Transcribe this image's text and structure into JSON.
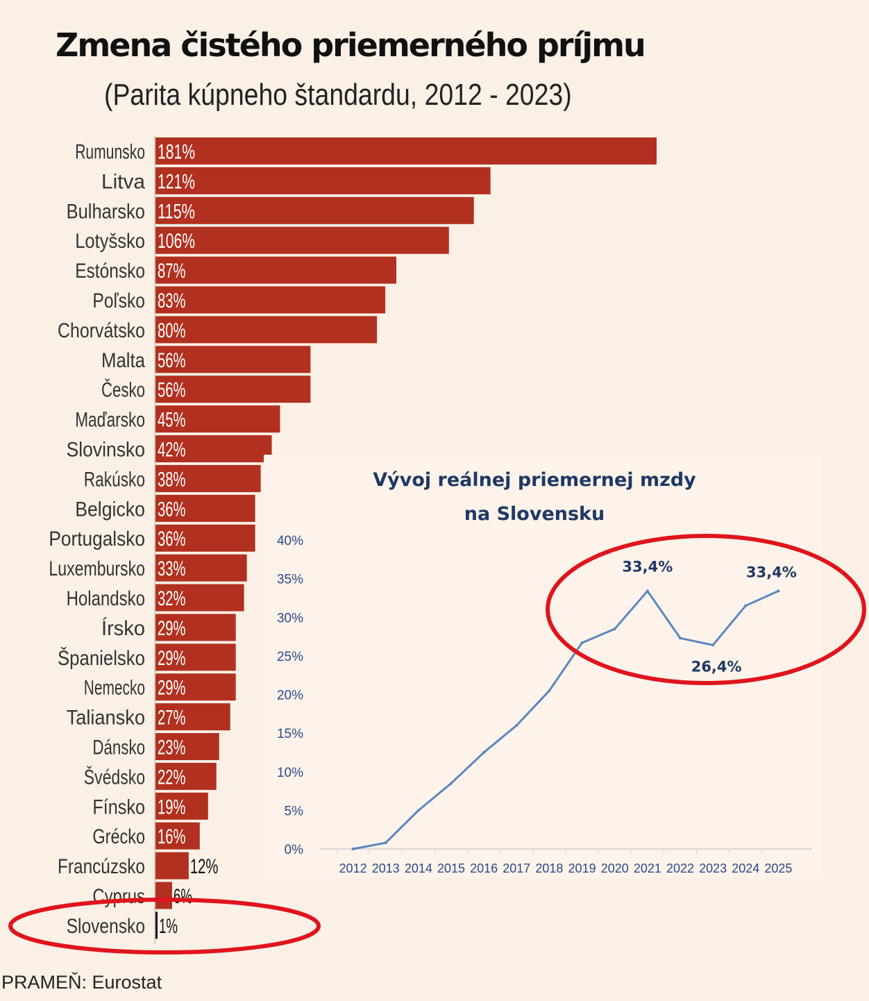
{
  "title": "Zmena čistého priemerného príjmu",
  "subtitle": "(Parita kúpneho štandardu, 2012 - 2023)",
  "source": "PRAMEŇ: Eurostat",
  "colors": {
    "bar": "#b2301f",
    "bar_highlight": "#111111",
    "line": "#5b86bf",
    "line_title": "#1f3864",
    "axis_text": "#2a4a8a",
    "highlight_ellipse": "#e0141c",
    "background": "#fbf0e6"
  },
  "chart_data": [
    {
      "type": "bar",
      "orientation": "horizontal",
      "title": "Zmena čistého priemerného príjmu",
      "subtitle": "(Parita kúpneho štandardu, 2012 - 2023)",
      "categories": [
        "Rumunsko",
        "Litva",
        "Bulharsko",
        "Lotyšsko",
        "Estónsko",
        "Poľsko",
        "Chorvátsko",
        "Malta",
        "Česko",
        "Maďarsko",
        "Slovinsko",
        "Rakúsko",
        "Belgicko",
        "Portugalsko",
        "Luxembursko",
        "Holandsko",
        "Írsko",
        "Španielsko",
        "Nemecko",
        "Taliansko",
        "Dánsko",
        "Švédsko",
        "Fínsko",
        "Grécko",
        "Francúzsko",
        "Cyprus",
        "Slovensko"
      ],
      "values": [
        181,
        121,
        115,
        106,
        87,
        83,
        80,
        56,
        56,
        45,
        42,
        38,
        36,
        36,
        33,
        32,
        29,
        29,
        29,
        27,
        23,
        22,
        19,
        16,
        12,
        6,
        1
      ],
      "value_labels": [
        "181%",
        "121%",
        "115%",
        "106%",
        "87%",
        "83%",
        "80%",
        "56%",
        "56%",
        "45%",
        "42%",
        "38%",
        "36%",
        "36%",
        "33%",
        "32%",
        "29%",
        "29%",
        "29%",
        "27%",
        "23%",
        "22%",
        "19%",
        "16%",
        "12%",
        "6%",
        "1%"
      ],
      "highlighted": "Slovensko",
      "grid": false,
      "source": "PRAMEŇ: Eurostat"
    },
    {
      "type": "line",
      "title": "Vývoj reálnej priemernej mzdy na Slovensku",
      "title_lines": [
        "Vývoj reálnej priemernej mzdy",
        "na Slovensku"
      ],
      "x": [
        "2012",
        "2013",
        "2014",
        "2015",
        "2016",
        "2017",
        "2018",
        "2019",
        "2020",
        "2021",
        "2022",
        "2023",
        "2024",
        "2025"
      ],
      "values": [
        0,
        0.8,
        5,
        8.5,
        12.5,
        16,
        20.5,
        26.7,
        28.5,
        33.4,
        27.3,
        26.4,
        31.5,
        33.4
      ],
      "ylim": [
        0,
        40
      ],
      "yticks": [
        "0%",
        "5%",
        "10%",
        "15%",
        "20%",
        "25%",
        "30%",
        "35%",
        "40%"
      ],
      "annotations": [
        {
          "x": "2021",
          "label": "33,4%"
        },
        {
          "x": "2023",
          "label": "26,4%"
        },
        {
          "x": "2025",
          "label": "33,4%"
        }
      ],
      "grid": false
    }
  ]
}
